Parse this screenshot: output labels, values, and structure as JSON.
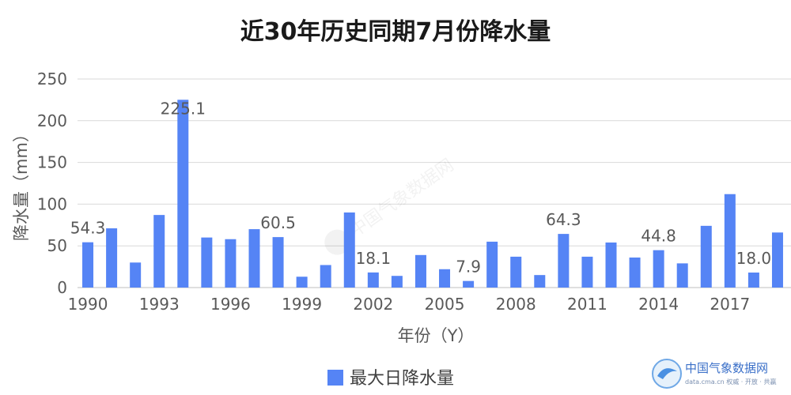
{
  "chart_data": {
    "type": "bar",
    "title": "近30年历史同期7月份降水量",
    "xlabel": "年份（Y）",
    "ylabel": "降水量（mm）",
    "ylim": [
      0,
      250
    ],
    "yticks": [
      "0",
      "50",
      "100",
      "150",
      "200",
      "250"
    ],
    "grid": true,
    "legend_position": "bottom",
    "bar_color": "#5584f5",
    "categories": [
      "1990",
      "1991",
      "1992",
      "1993",
      "1994",
      "1995",
      "1996",
      "1997",
      "1998",
      "1999",
      "2000",
      "2001",
      "2002",
      "2003",
      "2004",
      "2005",
      "2006",
      "2007",
      "2008",
      "2009",
      "2010",
      "2011",
      "2012",
      "2013",
      "2014",
      "2015",
      "2016",
      "2017",
      "2018",
      "2019"
    ],
    "x_tick_labels": [
      "1990",
      "1993",
      "1996",
      "1999",
      "2002",
      "2005",
      "2008",
      "2011",
      "2014",
      "2017"
    ],
    "series": [
      {
        "name": "最大日降水量",
        "values": [
          54.3,
          71,
          30,
          87,
          225.1,
          60,
          58,
          70,
          60.5,
          13,
          27,
          90,
          18.1,
          14,
          39,
          22,
          7.9,
          55,
          37,
          15,
          64.3,
          37,
          54,
          36,
          44.8,
          29,
          74,
          112,
          18.0,
          66
        ]
      }
    ],
    "data_labels": [
      {
        "category": "1990",
        "text": "54.3"
      },
      {
        "category": "1994",
        "text": "225.1"
      },
      {
        "category": "1998",
        "text": "60.5"
      },
      {
        "category": "2002",
        "text": "18.1"
      },
      {
        "category": "2006",
        "text": "7.9"
      },
      {
        "category": "2010",
        "text": "64.3"
      },
      {
        "category": "2014",
        "text": "44.8"
      },
      {
        "category": "2018",
        "text": "18.0"
      }
    ]
  },
  "watermark": {
    "center_text": "中国气象数据网",
    "logo_text": "中国气象数据网",
    "logo_subtext": "data.cma.cn 权威 · 开放 · 共赢"
  }
}
